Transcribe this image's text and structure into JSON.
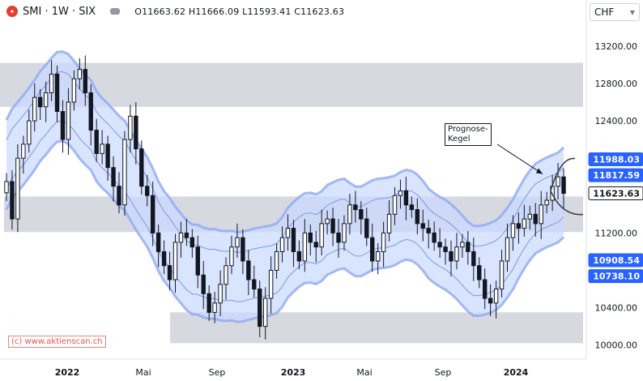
{
  "header": {
    "symbol": "SMI · 1W · SIX",
    "ohlc_text": "O11663.62 H11666.09 L11593.41 C11623.63",
    "logo_icon": "tradingview-logo-icon",
    "currency": "CHF"
  },
  "annotation": {
    "line1": "Prognose-",
    "line2": "Kegel"
  },
  "watermark": "(c) www.aktienscan.ch",
  "colors": {
    "band_fill": "#c9d8ff",
    "band_edge": "#8fa9f2",
    "zone_fill": "#cfd2da",
    "candle": "#131722",
    "price_label": "#2962ff"
  },
  "chart_data": {
    "type": "candlestick",
    "instrument": "SMI",
    "interval": "1W",
    "x_ticks": [
      "2022",
      "Mai",
      "Sep",
      "2023",
      "Mai",
      "Sep",
      "2024"
    ],
    "ylim": [
      9850,
      13450
    ],
    "y_ticks": [
      10000,
      10400,
      10800,
      11200,
      11600,
      12000,
      12400,
      12800,
      13200
    ],
    "y_tick_labels": [
      "10000.00",
      "10400.00",
      "",
      "11200.00",
      "",
      "",
      "12400.00",
      "12800.00",
      "13200.00"
    ],
    "price_labels": [
      {
        "value": 11988.03,
        "text": "11988.03",
        "style": "blue"
      },
      {
        "value": 11817.59,
        "text": "11817.59",
        "style": "blue"
      },
      {
        "value": 11623.63,
        "text": "11623.63",
        "style": "dark"
      },
      {
        "value": 10908.54,
        "text": "10908.54",
        "style": "blue"
      },
      {
        "value": 10738.1,
        "text": "10738.10",
        "style": "blue"
      }
    ],
    "zones": [
      {
        "x_from": 0,
        "x_to": 720,
        "low": 12550,
        "high": 13020
      },
      {
        "x_from": 5,
        "x_to": 720,
        "low": 11210,
        "high": 11590
      },
      {
        "x_from": 210,
        "x_to": 720,
        "low": 10020,
        "high": 10350
      }
    ],
    "closes": [
      11750,
      11350,
      12000,
      12150,
      12400,
      12650,
      12550,
      12700,
      12900,
      12500,
      12200,
      12600,
      12850,
      12950,
      12700,
      12300,
      12050,
      12150,
      11900,
      11700,
      11500,
      12200,
      12450,
      12100,
      11700,
      11600,
      11200,
      11000,
      10850,
      10700,
      11100,
      11200,
      11150,
      11050,
      10750,
      10550,
      10350,
      10450,
      10650,
      10850,
      11050,
      11150,
      10900,
      10700,
      10600,
      10200,
      10500,
      10800,
      11000,
      11150,
      11250,
      11000,
      10900,
      11200,
      11100,
      11050,
      11300,
      11350,
      11200,
      11100,
      11300,
      11500,
      11450,
      11350,
      11150,
      10900,
      11000,
      11200,
      11400,
      11600,
      11650,
      11500,
      11450,
      11300,
      11250,
      11200,
      11100,
      11050,
      11000,
      10900,
      11050,
      11100,
      11000,
      10850,
      10700,
      10500,
      10450,
      10600,
      10900,
      11150,
      11300,
      11250,
      11350,
      11400,
      11300,
      11500,
      11550,
      11700,
      11800,
      11623.63
    ]
  }
}
